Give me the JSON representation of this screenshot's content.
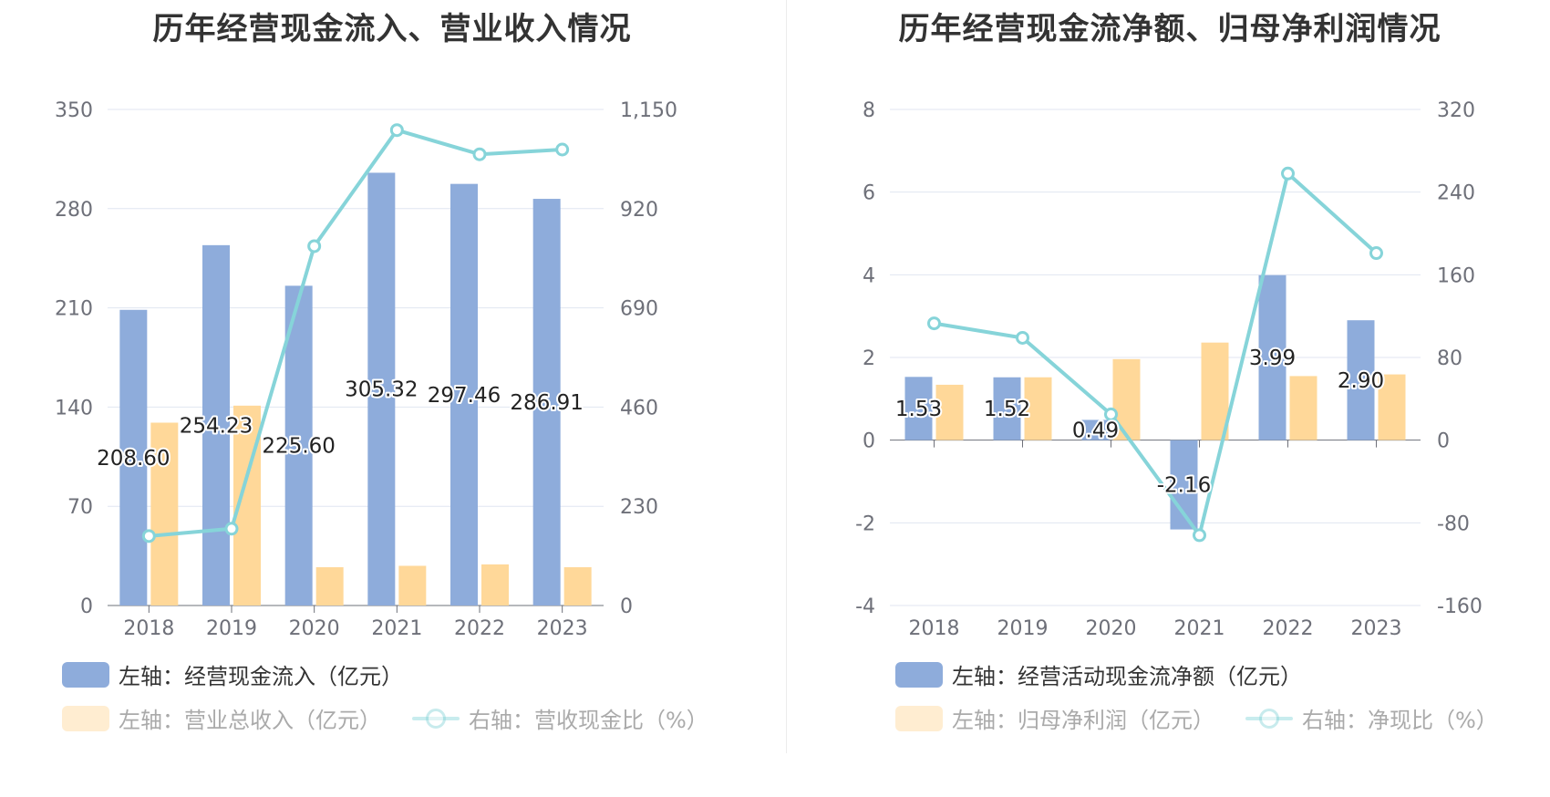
{
  "colors": {
    "primary": "#8eacdb",
    "secondary": "#ffd899",
    "line": "#86d4d9"
  },
  "chart_data": [
    {
      "type": "bar",
      "title": "历年经营现金流入、营业收入情况",
      "categories": [
        "2018",
        "2019",
        "2020",
        "2021",
        "2022",
        "2023"
      ],
      "left_axis": {
        "min": 0,
        "max": 350,
        "ticks": [
          0,
          70,
          140,
          210,
          280,
          350
        ],
        "tick_labels": [
          "0",
          "70",
          "140",
          "210",
          "280",
          "350"
        ]
      },
      "right_axis": {
        "min": 0,
        "max": 1150,
        "ticks": [
          0,
          230,
          460,
          690,
          920,
          1150
        ],
        "tick_labels": [
          "0",
          "230",
          "460",
          "690",
          "920",
          "1,150"
        ]
      },
      "grid": true,
      "series": [
        {
          "name": "左轴：经营现金流入（亿元）",
          "kind": "bar",
          "axis": "left",
          "values": [
            208.6,
            254.23,
            225.6,
            305.32,
            297.46,
            286.91
          ],
          "labels": [
            "208.60",
            "254.23",
            "225.60",
            "305.32",
            "297.46",
            "286.91"
          ]
        },
        {
          "name": "左轴：营业总收入（亿元）",
          "kind": "bar",
          "axis": "left",
          "values": [
            129,
            141,
            27,
            28,
            29,
            27
          ]
        },
        {
          "name": "右轴：营收现金比（%）",
          "kind": "line",
          "axis": "right",
          "values": [
            161,
            178,
            833,
            1102,
            1046,
            1057
          ]
        }
      ],
      "legend_position": "bottom"
    },
    {
      "type": "bar",
      "title": "历年经营现金流净额、归母净利润情况",
      "categories": [
        "2018",
        "2019",
        "2020",
        "2021",
        "2022",
        "2023"
      ],
      "left_axis": {
        "min": -4,
        "max": 8,
        "ticks": [
          -4,
          -2,
          0,
          2,
          4,
          6,
          8
        ],
        "tick_labels": [
          "-4",
          "-2",
          "0",
          "2",
          "4",
          "6",
          "8"
        ]
      },
      "right_axis": {
        "min": -160,
        "max": 320,
        "ticks": [
          -160,
          -80,
          0,
          80,
          160,
          240,
          320
        ],
        "tick_labels": [
          "-160",
          "-80",
          "0",
          "80",
          "160",
          "240",
          "320"
        ]
      },
      "grid": true,
      "series": [
        {
          "name": "左轴：经营活动现金流净额（亿元）",
          "kind": "bar",
          "axis": "left",
          "values": [
            1.53,
            1.52,
            0.49,
            -2.16,
            3.99,
            2.9
          ],
          "labels": [
            "1.53",
            "1.52",
            "0.49",
            "-2.16",
            "3.99",
            "2.90"
          ]
        },
        {
          "name": "左轴：归母净利润（亿元）",
          "kind": "bar",
          "axis": "left",
          "values": [
            1.34,
            1.52,
            1.96,
            2.36,
            1.55,
            1.59
          ]
        },
        {
          "name": "右轴：净现比（%）",
          "kind": "line",
          "axis": "right",
          "values": [
            113,
            99,
            25,
            -92,
            258,
            181
          ]
        }
      ],
      "legend_position": "bottom"
    }
  ]
}
